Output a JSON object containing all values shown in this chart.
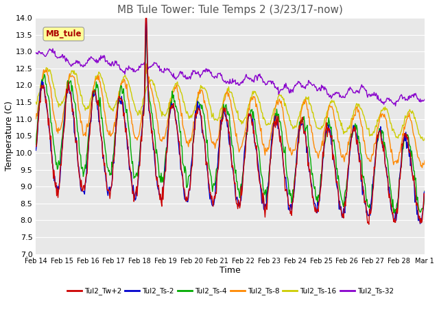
{
  "title": "MB Tule Tower: Tule Temps 2 (3/23/17-now)",
  "xlabel": "Time",
  "ylabel": "Temperature (C)",
  "ylim": [
    7.0,
    14.0
  ],
  "yticks": [
    7.0,
    7.5,
    8.0,
    8.5,
    9.0,
    9.5,
    10.0,
    10.5,
    11.0,
    11.5,
    12.0,
    12.5,
    13.0,
    13.5,
    14.0
  ],
  "x_labels": [
    "Feb 14",
    "Feb 15",
    "Feb 16",
    "Feb 17",
    "Feb 18",
    "Feb 19",
    "Feb 20",
    "Feb 21",
    "Feb 22",
    "Feb 23",
    "Feb 24",
    "Feb 25",
    "Feb 26",
    "Feb 27",
    "Feb 28",
    "Mar 1"
  ],
  "legend_label": "MB_tule",
  "series_labels": [
    "Tul2_Tw+2",
    "Tul2_Ts-2",
    "Tul2_Ts-4",
    "Tul2_Ts-8",
    "Tul2_Ts-16",
    "Tul2_Ts-32"
  ],
  "series_colors": [
    "#cc0000",
    "#0000cc",
    "#00aa00",
    "#ff8800",
    "#cccc00",
    "#8800cc"
  ],
  "bg_color": "#e8e8e8",
  "grid_color": "#ffffff",
  "title_color": "#555555",
  "title_fontsize": 11,
  "axis_fontsize": 9,
  "tick_fontsize": 8
}
